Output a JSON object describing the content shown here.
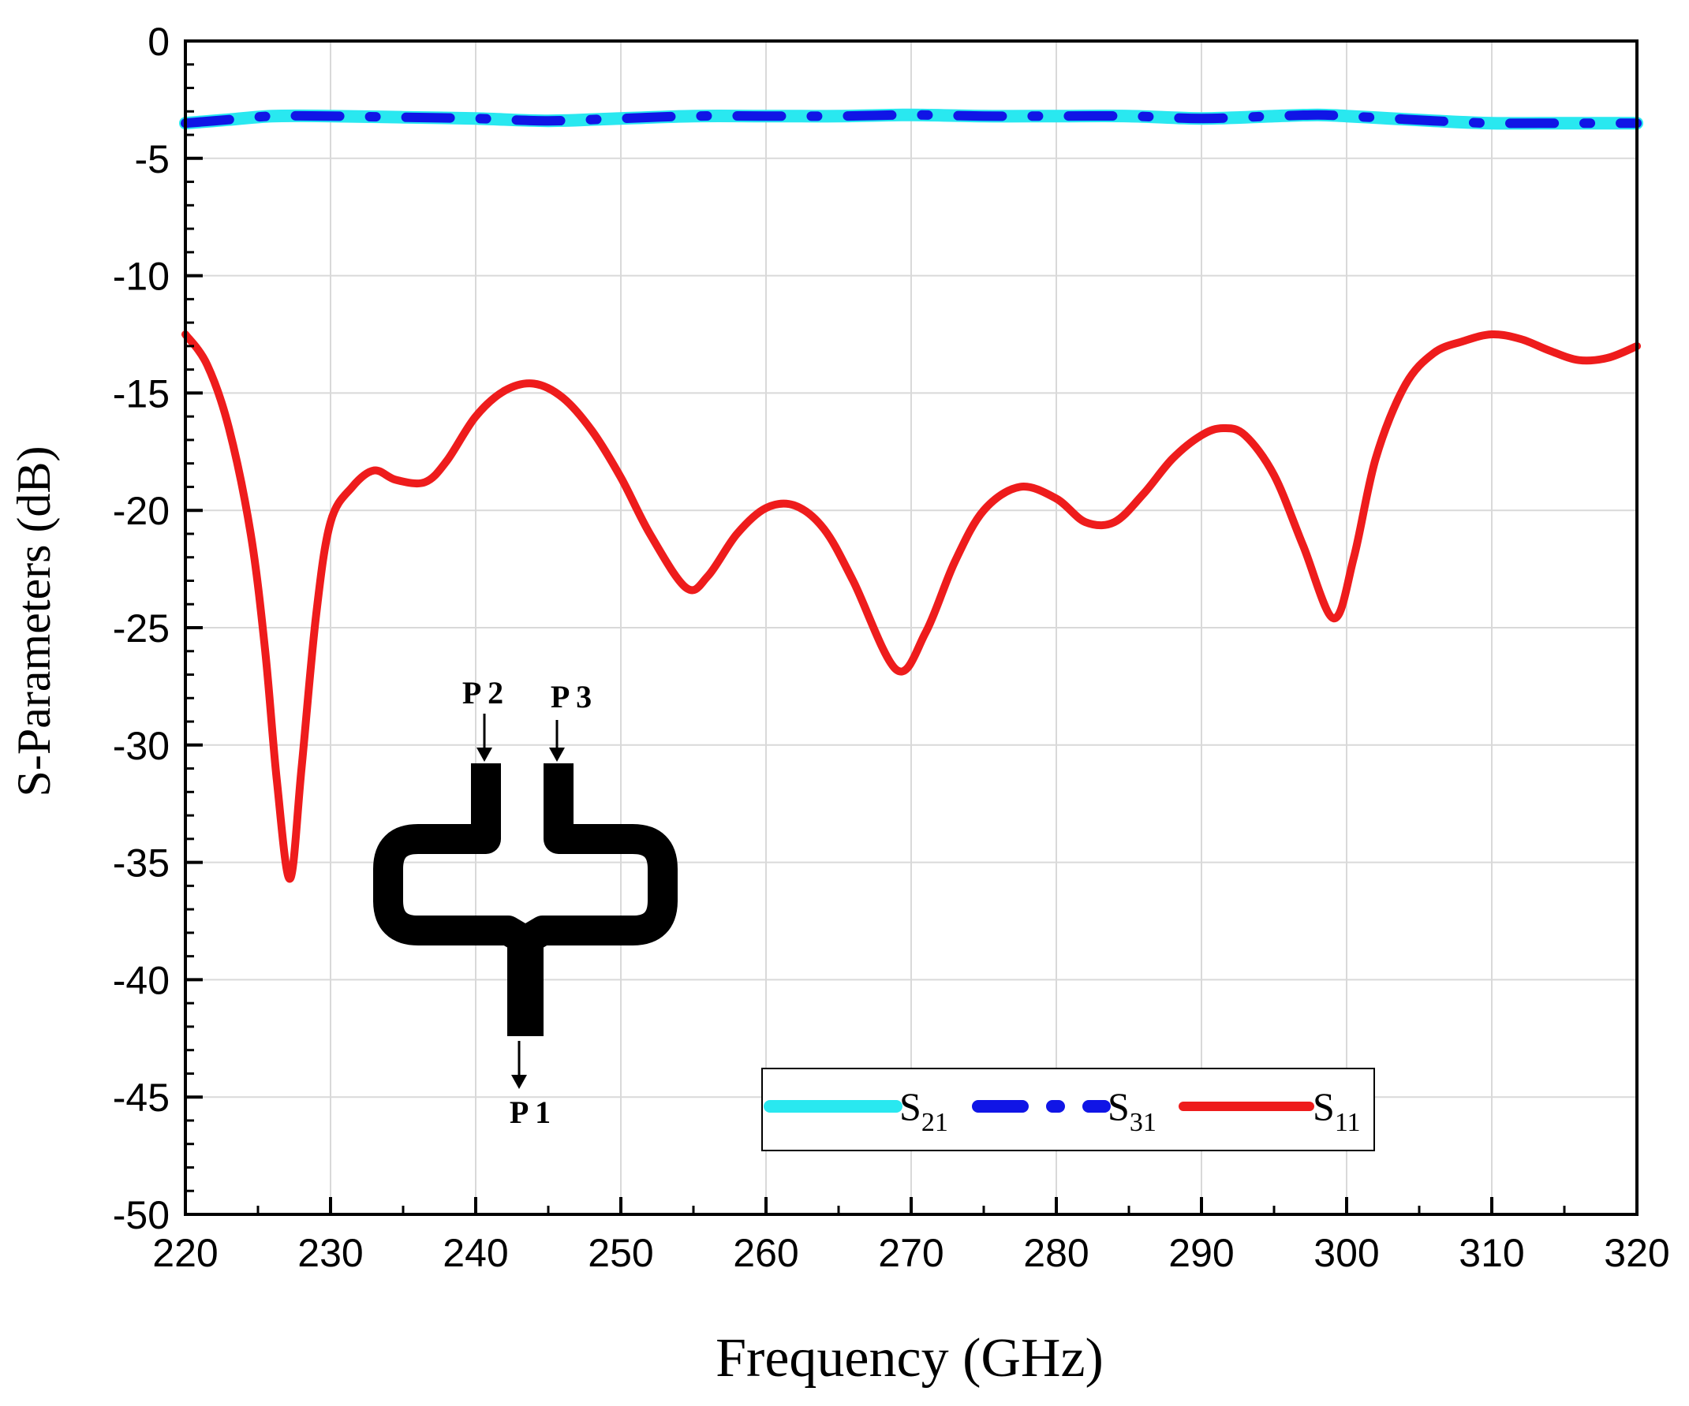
{
  "chart_data": {
    "type": "line",
    "xlabel": "Frequency (GHz)",
    "ylabel": "S-Parameters (dB)",
    "xlim": [
      220,
      320
    ],
    "ylim": [
      -50,
      0
    ],
    "xticks": [
      220,
      230,
      240,
      250,
      260,
      270,
      280,
      290,
      300,
      310,
      320
    ],
    "yticks": [
      0,
      -5,
      -10,
      -15,
      -20,
      -25,
      -30,
      -35,
      -40,
      -45,
      -50
    ],
    "grid": true,
    "legend_position": "bottom-right",
    "series": [
      {
        "name": "S21",
        "legend_main": "S",
        "legend_sub": "21",
        "color": "#29e8f0",
        "style": "solid",
        "x": [
          220,
          223,
          226,
          230,
          235,
          240,
          245,
          250,
          255,
          260,
          265,
          270,
          275,
          280,
          285,
          290,
          295,
          298,
          300,
          303,
          306,
          310,
          315,
          320
        ],
        "y": [
          -3.5,
          -3.35,
          -3.2,
          -3.2,
          -3.25,
          -3.3,
          -3.4,
          -3.3,
          -3.2,
          -3.2,
          -3.2,
          -3.15,
          -3.2,
          -3.2,
          -3.2,
          -3.3,
          -3.2,
          -3.15,
          -3.2,
          -3.3,
          -3.4,
          -3.5,
          -3.5,
          -3.5
        ]
      },
      {
        "name": "S31",
        "legend_main": "S",
        "legend_sub": "31",
        "color": "#1015e6",
        "style": "dash-dot",
        "x": [
          220,
          223,
          226,
          230,
          235,
          240,
          245,
          250,
          255,
          260,
          265,
          270,
          275,
          280,
          285,
          290,
          295,
          298,
          300,
          303,
          306,
          310,
          315,
          320
        ],
        "y": [
          -3.5,
          -3.35,
          -3.2,
          -3.2,
          -3.25,
          -3.3,
          -3.4,
          -3.3,
          -3.2,
          -3.2,
          -3.2,
          -3.15,
          -3.2,
          -3.2,
          -3.2,
          -3.3,
          -3.2,
          -3.15,
          -3.2,
          -3.3,
          -3.4,
          -3.5,
          -3.5,
          -3.5
        ]
      },
      {
        "name": "S11",
        "legend_main": "S",
        "legend_sub": "11",
        "color": "#ee1c1c",
        "style": "solid",
        "x": [
          220,
          221.5,
          223,
          224.5,
          225.5,
          226.3,
          227.2,
          228,
          229,
          230,
          231.5,
          233,
          234.5,
          236.5,
          238,
          240,
          242,
          244,
          246,
          248,
          250,
          252,
          254.5,
          256,
          258,
          260,
          262,
          264,
          266,
          269,
          271,
          273,
          275,
          277.5,
          280,
          282,
          284,
          286,
          288,
          290,
          291.5,
          293,
          295,
          297,
          299.1,
          300.5,
          302,
          304,
          306,
          308,
          310,
          312,
          314,
          316,
          318,
          320
        ],
        "y": [
          -12.5,
          -13.8,
          -16.5,
          -21,
          -26,
          -31.5,
          -35.7,
          -31,
          -24.5,
          -20.5,
          -19,
          -18.3,
          -18.7,
          -18.8,
          -17.9,
          -16,
          -14.9,
          -14.6,
          -15.2,
          -16.6,
          -18.6,
          -21,
          -23.3,
          -22.8,
          -21,
          -19.9,
          -19.8,
          -20.8,
          -23,
          -26.8,
          -25.2,
          -22.2,
          -20,
          -19,
          -19.5,
          -20.5,
          -20.5,
          -19.3,
          -17.8,
          -16.8,
          -16.5,
          -16.8,
          -18.5,
          -21.5,
          -24.6,
          -22,
          -17.8,
          -14.7,
          -13.3,
          -12.8,
          -12.5,
          -12.7,
          -13.2,
          -13.6,
          -13.5,
          -13
        ]
      }
    ],
    "inset_labels": {
      "port2": "P 2",
      "port3": "P 3",
      "port1": "P 1"
    }
  },
  "colors": {
    "grid": "#d9d9d9",
    "axis": "#000000"
  },
  "icons": {
    "inset": "power-divider-diagram-icon"
  }
}
